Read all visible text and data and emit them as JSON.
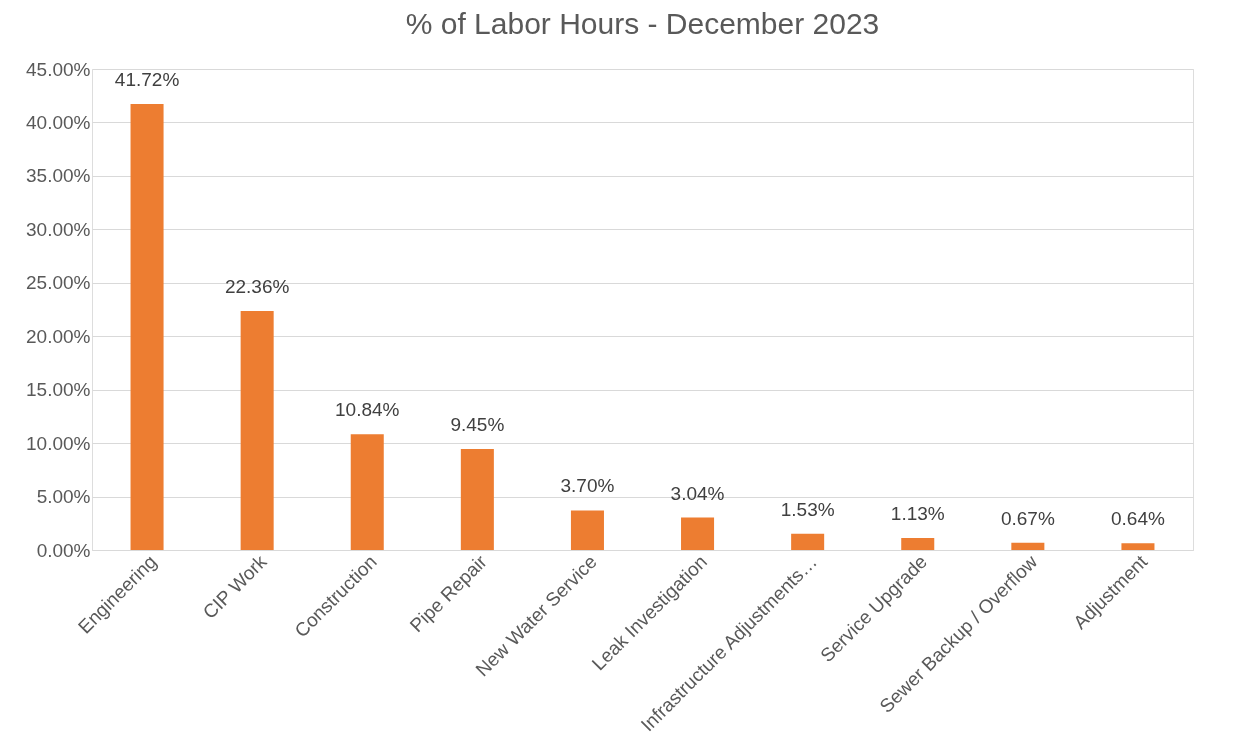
{
  "chart_data": {
    "type": "bar",
    "title": "% of Labor Hours - December 2023",
    "categories": [
      "Engineering",
      "CIP Work",
      "Construction",
      "Pipe Repair",
      "New Water Service",
      "Leak Investigation",
      "Infrastructure Adjustments…",
      "Service Upgrade",
      "Sewer Backup / Overflow",
      "Adjustment"
    ],
    "values": [
      41.72,
      22.36,
      10.84,
      9.45,
      3.7,
      3.04,
      1.53,
      1.13,
      0.67,
      0.64
    ],
    "value_labels": [
      "41.72%",
      "22.36%",
      "10.84%",
      "9.45%",
      "3.70%",
      "3.04%",
      "1.53%",
      "1.13%",
      "0.67%",
      "0.64%"
    ],
    "color": "#ed7d31",
    "ylim": [
      0,
      45
    ],
    "yticks": [
      {
        "value": 0,
        "label": "0.00%"
      },
      {
        "value": 5,
        "label": "5.00%"
      },
      {
        "value": 10,
        "label": "10.00%"
      },
      {
        "value": 15,
        "label": "15.00%"
      },
      {
        "value": 20,
        "label": "20.00%"
      },
      {
        "value": 25,
        "label": "25.00%"
      },
      {
        "value": 30,
        "label": "30.00%"
      },
      {
        "value": 35,
        "label": "35.00%"
      },
      {
        "value": 40,
        "label": "40.00%"
      },
      {
        "value": 45,
        "label": "45.00%"
      }
    ],
    "grid": "y"
  }
}
